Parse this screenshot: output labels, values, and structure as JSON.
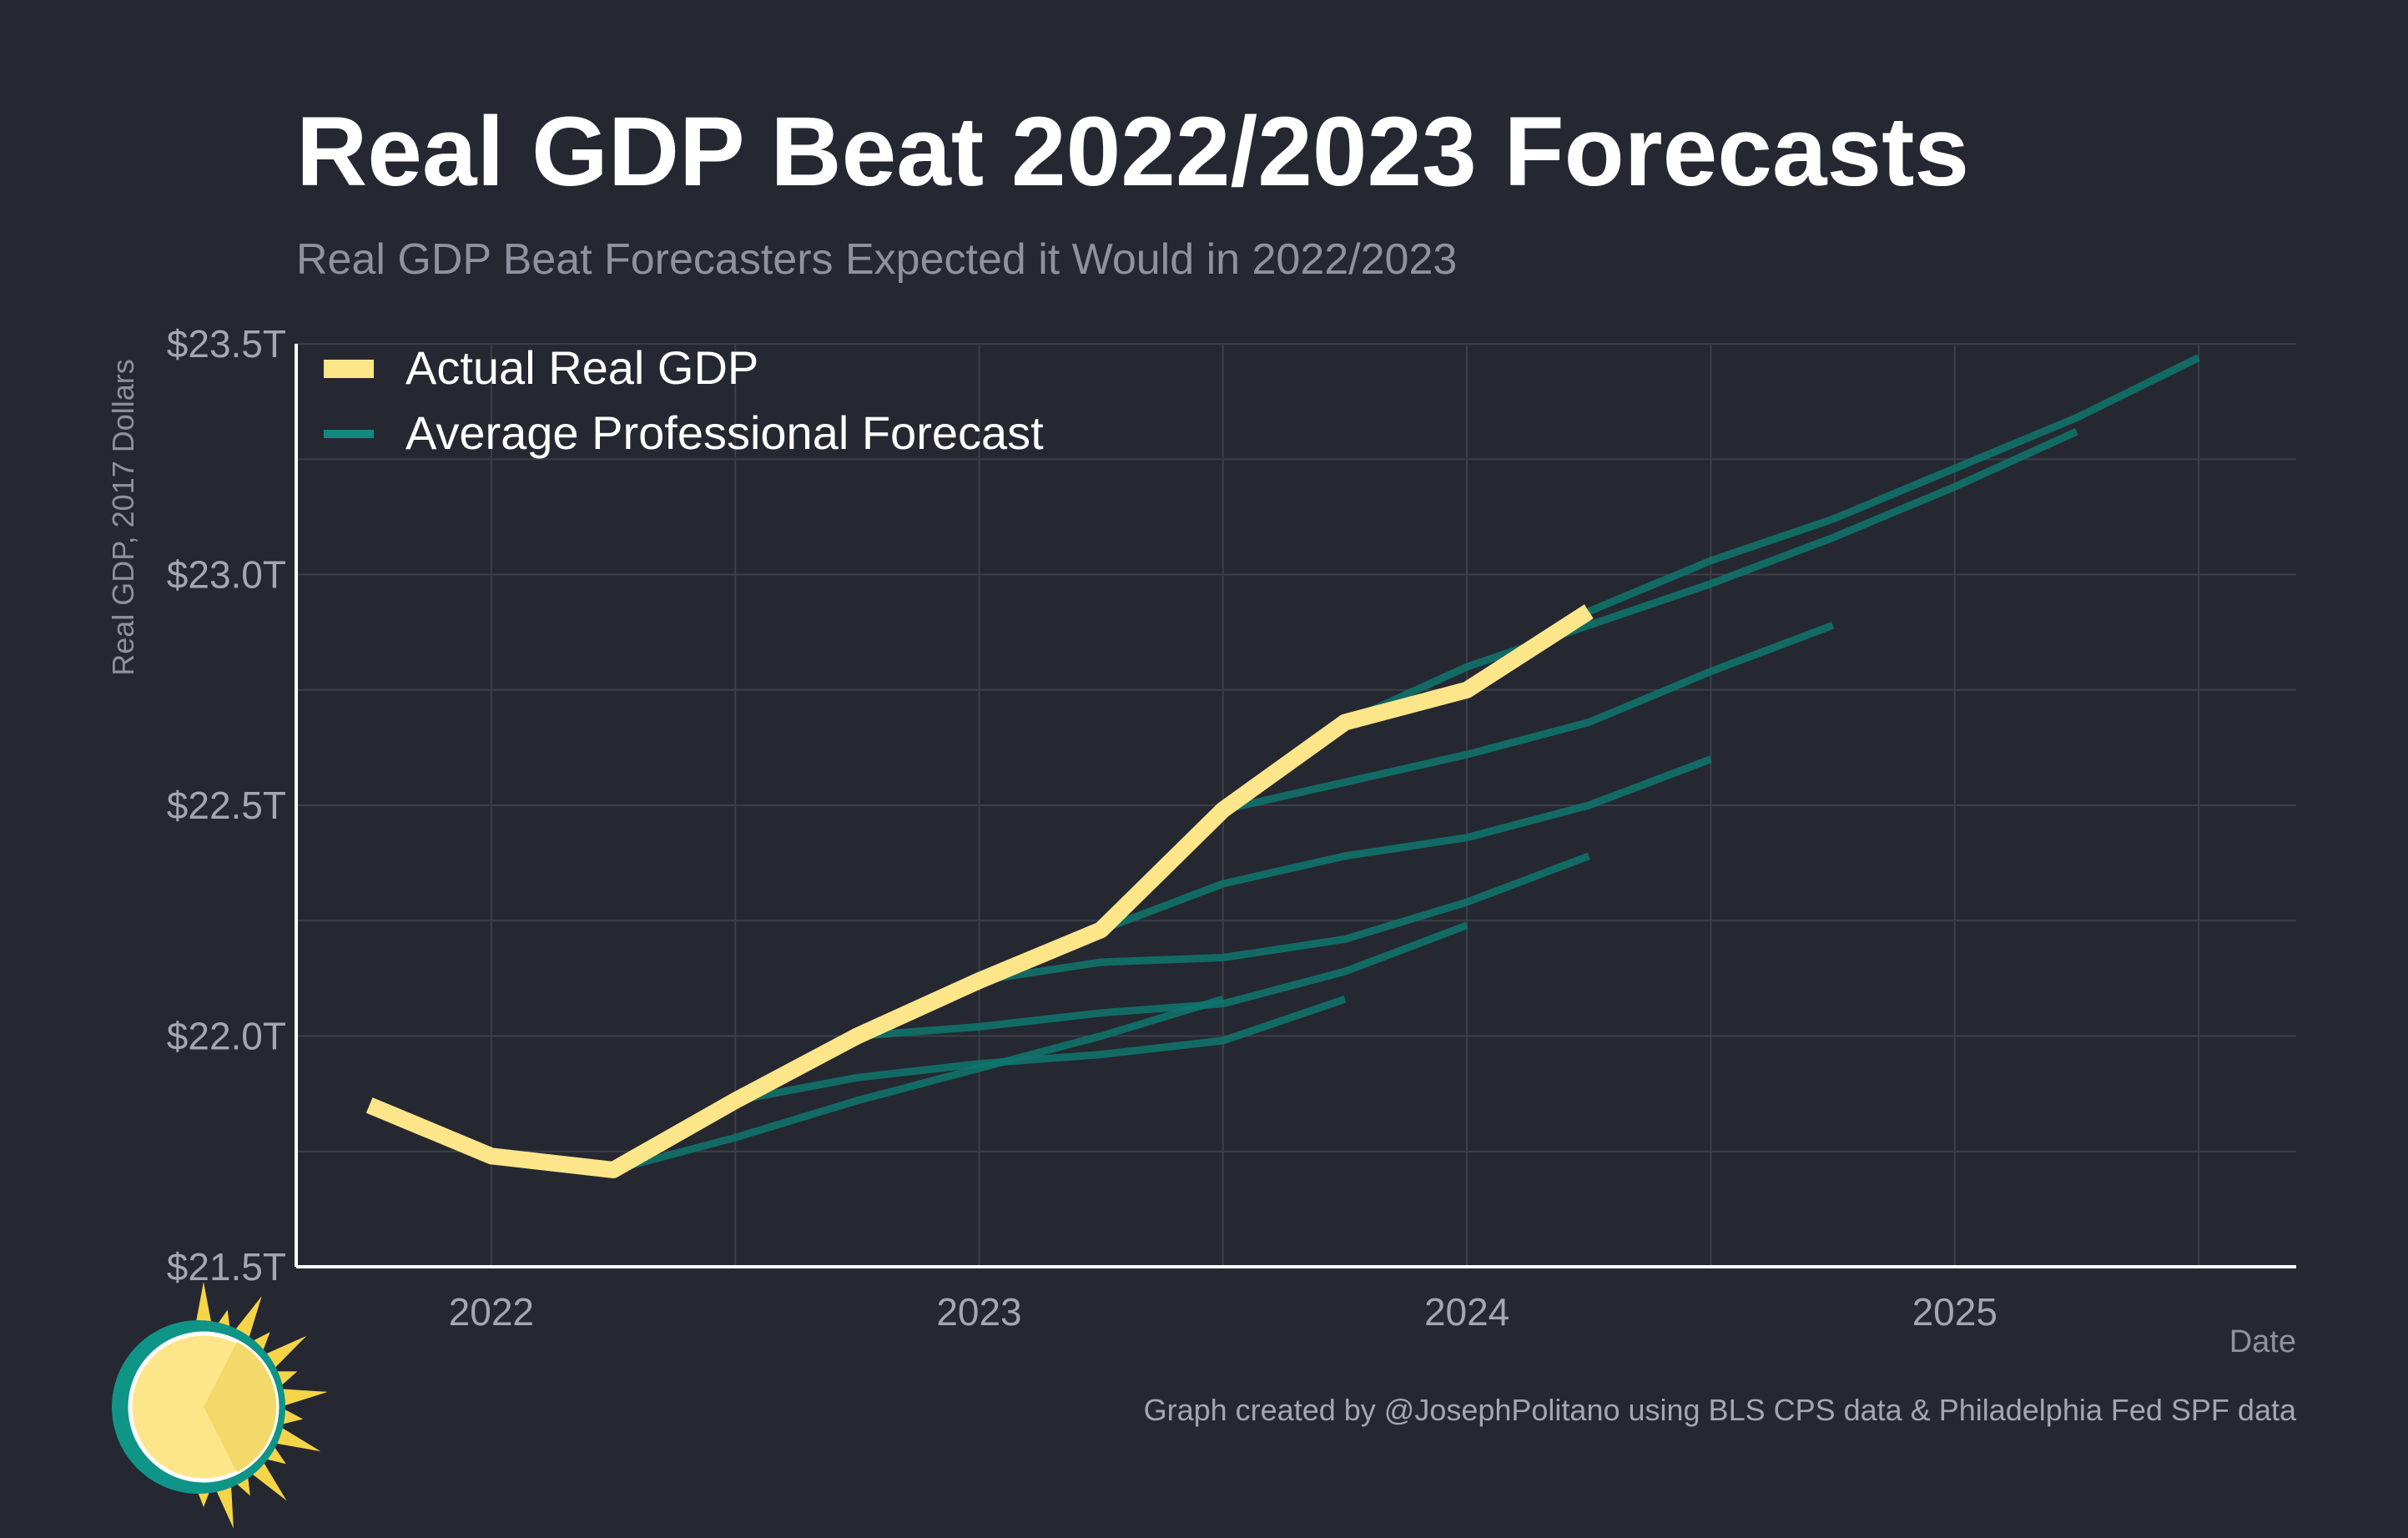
{
  "chart_data": {
    "type": "line",
    "title": "Real GDP Beat 2022/2023 Forecasts",
    "subtitle": "Real GDP Beat Forecasters Expected it Would in 2022/2023",
    "xlabel": "Date",
    "ylabel": "Real GDP, 2017 Dollars",
    "xlim": [
      2021.6,
      2025.7
    ],
    "ylim": [
      21.5,
      23.5
    ],
    "x_ticks": [
      {
        "value": 2022,
        "label": "2022"
      },
      {
        "value": 2023,
        "label": "2023"
      },
      {
        "value": 2024,
        "label": "2024"
      },
      {
        "value": 2025,
        "label": "2025"
      }
    ],
    "y_ticks": [
      {
        "value": 21.5,
        "label": "$21.5T"
      },
      {
        "value": 22.0,
        "label": "$22.0T"
      },
      {
        "value": 22.5,
        "label": "$22.5T"
      },
      {
        "value": 23.0,
        "label": "$23.0T"
      },
      {
        "value": 23.5,
        "label": "$23.5T"
      }
    ],
    "grid": true,
    "legend_position": "top-left",
    "colors": {
      "background": "#252831",
      "actual": "#fde68a",
      "forecast": "#0f766e",
      "grid": "#3b3f49",
      "axis": "#ffffff"
    },
    "legend": [
      {
        "label": "Actual Real GDP",
        "color": "#fde68a"
      },
      {
        "label": "Average Professional Forecast",
        "color": "#0f766e"
      }
    ],
    "actual": {
      "name": "Actual Real GDP",
      "points": [
        [
          2021.75,
          21.85
        ],
        [
          2022.0,
          21.74
        ],
        [
          2022.25,
          21.71
        ],
        [
          2022.5,
          21.86
        ],
        [
          2022.75,
          22.0
        ],
        [
          2023.0,
          22.12
        ],
        [
          2023.25,
          22.23
        ],
        [
          2023.5,
          22.49
        ],
        [
          2023.75,
          22.68
        ],
        [
          2024.0,
          22.75
        ],
        [
          2024.25,
          22.92
        ]
      ]
    },
    "forecasts": [
      {
        "points": [
          [
            2022.25,
            21.71
          ],
          [
            2022.5,
            21.78
          ],
          [
            2022.75,
            21.86
          ],
          [
            2023.0,
            21.93
          ],
          [
            2023.25,
            22.0
          ],
          [
            2023.5,
            22.08
          ]
        ]
      },
      {
        "points": [
          [
            2022.5,
            21.86
          ],
          [
            2022.75,
            21.91
          ],
          [
            2023.0,
            21.94
          ],
          [
            2023.25,
            21.96
          ],
          [
            2023.5,
            21.99
          ],
          [
            2023.75,
            22.08
          ]
        ]
      },
      {
        "points": [
          [
            2022.75,
            22.0
          ],
          [
            2023.0,
            22.02
          ],
          [
            2023.25,
            22.05
          ],
          [
            2023.5,
            22.07
          ],
          [
            2023.75,
            22.14
          ],
          [
            2024.0,
            22.24
          ]
        ]
      },
      {
        "points": [
          [
            2023.0,
            22.12
          ],
          [
            2023.25,
            22.16
          ],
          [
            2023.5,
            22.17
          ],
          [
            2023.75,
            22.21
          ],
          [
            2024.0,
            22.29
          ],
          [
            2024.25,
            22.39
          ]
        ]
      },
      {
        "points": [
          [
            2023.25,
            22.23
          ],
          [
            2023.5,
            22.33
          ],
          [
            2023.75,
            22.39
          ],
          [
            2024.0,
            22.43
          ],
          [
            2024.25,
            22.5
          ],
          [
            2024.5,
            22.6
          ]
        ]
      },
      {
        "points": [
          [
            2023.5,
            22.49
          ],
          [
            2023.75,
            22.55
          ],
          [
            2024.0,
            22.61
          ],
          [
            2024.25,
            22.68
          ],
          [
            2024.5,
            22.79
          ],
          [
            2024.75,
            22.89
          ]
        ]
      },
      {
        "points": [
          [
            2023.75,
            22.68
          ],
          [
            2024.0,
            22.8
          ],
          [
            2024.25,
            22.89
          ],
          [
            2024.5,
            22.98
          ],
          [
            2024.75,
            23.08
          ],
          [
            2025.0,
            23.19
          ],
          [
            2025.25,
            23.31
          ]
        ]
      },
      {
        "points": [
          [
            2024.25,
            22.92
          ],
          [
            2024.5,
            23.03
          ],
          [
            2024.75,
            23.12
          ],
          [
            2025.0,
            23.23
          ],
          [
            2025.25,
            23.34
          ],
          [
            2025.5,
            23.47
          ]
        ]
      }
    ],
    "caption": "Graph created by @JosephPolitano using BLS CPS data & Philadelphia Fed SPF data"
  },
  "logo": {
    "icon": "sun-logo-icon"
  }
}
